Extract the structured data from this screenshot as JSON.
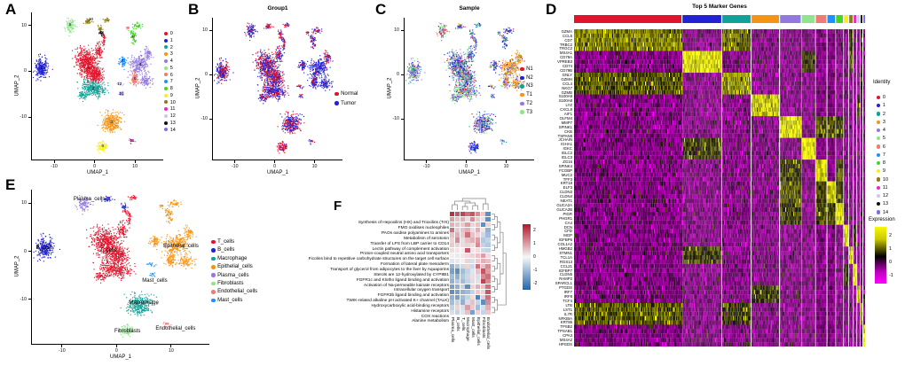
{
  "panel_labels": {
    "a": "A",
    "b": "B",
    "c": "C",
    "d": "D",
    "e": "E",
    "f": "F"
  },
  "axis": {
    "xlabel": "UMAP_1",
    "ylabel": "UMAP_2",
    "x_ticks": [
      -10,
      0,
      10
    ],
    "y_ticks": [
      10,
      0,
      -10
    ]
  },
  "palette": {
    "clusters": [
      "#E0152D",
      "#2222D3",
      "#11A297",
      "#F59314",
      "#9379DF",
      "#8FE58C",
      "#F07B72",
      "#1E90FF",
      "#45D621",
      "#F7EF1B",
      "#8A7C10",
      "#F224C4",
      "#C9C6F2",
      "#111111",
      "#7A70E8"
    ],
    "normal": "#E0152D",
    "tumor": "#2222D3",
    "samples": [
      "#E0152D",
      "#2222D3",
      "#11A297",
      "#F59314",
      "#9379DF",
      "#8FE58C"
    ],
    "celltypes": {
      "T_cells": "#E0152D",
      "B_cells": "#2222D3",
      "Macrophage": "#11A297",
      "Epithelial_cells": "#F59314",
      "Plasma_cells": "#9379DF",
      "Fibroblasts": "#8FE58C",
      "Endothelial_cells": "#F07B72",
      "Mast_cells": "#1E90FF"
    }
  },
  "chart_data": {
    "umap_blobs": [
      [
        -13.1,
        0.7,
        1.25,
        1.8,
        0,
        260,
        1,
        0.55,
        [
          6,
          10,
          16,
          2,
          42,
          24
        ],
        "B_cells"
      ],
      [
        -1.9,
        1.7,
        1.8,
        2.6,
        0.45,
        520,
        0,
        0.48,
        [
          10,
          34,
          10,
          2,
          28,
          16
        ],
        "T_cells"
      ],
      [
        0.2,
        -0.7,
        1.5,
        1.5,
        0,
        220,
        0,
        0.5,
        [
          8,
          26,
          12,
          3,
          29,
          22
        ],
        "T_cells"
      ],
      [
        1.1,
        4.3,
        0.7,
        1.5,
        0.15,
        85,
        0,
        0.45,
        [
          10,
          30,
          10,
          2,
          28,
          20
        ],
        "T_cells"
      ],
      [
        2.3,
        7.0,
        0.35,
        1.1,
        0,
        30,
        0,
        0.42,
        [
          10,
          30,
          10,
          2,
          28,
          20
        ],
        "T_cells"
      ],
      [
        -0.2,
        -3.7,
        2.2,
        1.4,
        -0.15,
        300,
        2,
        0.68,
        [
          5,
          14,
          10,
          2,
          31,
          38
        ],
        "T_cells"
      ],
      [
        -2.7,
        -5.3,
        0.85,
        0.75,
        0,
        60,
        2,
        0.62,
        [
          5,
          14,
          10,
          2,
          31,
          38
        ],
        "T_cells"
      ],
      [
        4.2,
        -11.1,
        2.0,
        1.6,
        0.2,
        300,
        3,
        0.6,
        [
          8,
          30,
          15,
          4,
          25,
          18
        ],
        "Macrophage"
      ],
      [
        11.1,
        1.3,
        1.8,
        1.6,
        0.35,
        240,
        4,
        0.92,
        [
          4,
          9,
          4,
          71,
          8,
          4
        ],
        "Epithelial_cells"
      ],
      [
        13.2,
        3.7,
        0.75,
        0.95,
        0,
        55,
        4,
        0.5,
        [
          4,
          9,
          4,
          71,
          8,
          4
        ],
        "Epithelial_cells"
      ],
      [
        12.7,
        -1.9,
        1.1,
        1.1,
        0,
        85,
        4,
        0.92,
        [
          4,
          9,
          4,
          71,
          8,
          4
        ],
        "Epithelial_cells"
      ],
      [
        -6.0,
        10.0,
        0.95,
        1.15,
        0,
        100,
        5,
        0.75,
        [
          20,
          10,
          10,
          4,
          16,
          40
        ],
        "Plasma_cells"
      ],
      [
        9.9,
        -1.6,
        0.85,
        1.3,
        0,
        90,
        6,
        0.85,
        [
          5,
          12,
          5,
          48,
          20,
          10
        ],
        "Epithelial_cells"
      ],
      [
        7.0,
        2.1,
        0.75,
        0.85,
        0,
        70,
        7,
        0.75,
        [
          5,
          38,
          9,
          8,
          30,
          10
        ],
        "Epithelial_cells"
      ],
      [
        9.6,
        7.6,
        0.6,
        1.3,
        0.2,
        60,
        8,
        0.55,
        [
          6,
          55,
          6,
          10,
          11,
          12
        ],
        "Epithelial_cells"
      ],
      [
        10.6,
        9.9,
        0.95,
        0.5,
        -0.3,
        40,
        8,
        0.3,
        [
          6,
          55,
          6,
          10,
          11,
          12
        ],
        "Epithelial_cells"
      ],
      [
        2.0,
        -16.3,
        1.0,
        0.85,
        0,
        90,
        9,
        0.2,
        [
          5,
          70,
          7,
          2,
          9,
          7
        ],
        "Fibroblasts"
      ],
      [
        -1.6,
        10.9,
        0.75,
        0.45,
        0.2,
        35,
        10,
        0.3,
        [
          10,
          20,
          28,
          4,
          12,
          26
        ],
        "B_cells"
      ],
      [
        1.4,
        9.3,
        0.5,
        0.6,
        0,
        25,
        10,
        0.32,
        [
          10,
          20,
          28,
          4,
          12,
          26
        ],
        "B_cells"
      ],
      [
        3.1,
        11.1,
        0.65,
        0.35,
        0,
        22,
        10,
        0.4,
        [
          10,
          20,
          28,
          4,
          12,
          26
        ],
        "T_cells"
      ],
      [
        9.1,
        -15.1,
        0.5,
        0.4,
        0,
        18,
        11,
        0.3,
        [
          15,
          20,
          15,
          15,
          20,
          15
        ],
        "Endothelial_cells"
      ],
      [
        6.3,
        -2.7,
        0.65,
        0.55,
        0,
        16,
        12,
        0.4,
        [
          6,
          38,
          10,
          10,
          26,
          10
        ],
        "Mast_cells"
      ],
      [
        1.7,
        8.2,
        0.45,
        0.4,
        0,
        16,
        13,
        0.5,
        [
          10,
          30,
          15,
          5,
          25,
          15
        ],
        "T_cells"
      ],
      [
        6.6,
        -4.9,
        0.45,
        0.4,
        0,
        14,
        14,
        0.4,
        [
          6,
          38,
          10,
          10,
          26,
          10
        ],
        "Mast_cells"
      ],
      [
        8.2,
        9.4,
        0.3,
        0.3,
        0,
        12,
        6,
        0.2,
        [
          10,
          20,
          20,
          20,
          15,
          15
        ],
        "Epithelial_cells"
      ]
    ],
    "umap_clusters": {
      "type": "scatter",
      "legend": [
        "0",
        "1",
        "2",
        "3",
        "4",
        "5",
        "6",
        "7",
        "8",
        "9",
        "10",
        "11",
        "12",
        "13",
        "14"
      ],
      "labels": [
        [
          "0",
          -1.3,
          0.6
        ],
        [
          "1",
          -13.1,
          0.6
        ],
        [
          "2",
          -0.3,
          -3.9
        ],
        [
          "3",
          4.2,
          -11.3
        ],
        [
          "4",
          11.3,
          1.3
        ],
        [
          "5",
          -6.1,
          9.9
        ],
        [
          "6",
          10.0,
          -1.7
        ],
        [
          "7",
          6.9,
          2.0
        ],
        [
          "8",
          9.6,
          7.3
        ],
        [
          "9",
          2.0,
          -16.5
        ],
        [
          "10",
          -0.9,
          11.2
        ],
        [
          "11",
          9.3,
          -15.3
        ],
        [
          "12",
          6.2,
          -2.9
        ],
        [
          "13",
          1.7,
          8.2
        ],
        [
          "14",
          6.7,
          -5.1
        ]
      ]
    },
    "umap_group": {
      "type": "scatter",
      "title": "Group1",
      "legend": [
        "Normal",
        "Tumor"
      ]
    },
    "umap_sample": {
      "type": "scatter",
      "title": "Sample",
      "legend": [
        "N1",
        "N2",
        "N3",
        "T1",
        "T2",
        "T3"
      ]
    },
    "umap_celltype": {
      "type": "scatter",
      "legend": [
        "T_cells",
        "B_cells",
        "Macrophage",
        "Epithelial_cells",
        "Plasma_cells",
        "Fibroblasts",
        "Endothelial_cells",
        "Mast_cells"
      ],
      "labels": [
        [
          "Plasma_cells",
          -5.0,
          10.8
        ],
        [
          "B_cells",
          -13.2,
          0.6
        ],
        [
          "T_cells",
          -1.5,
          0.0
        ],
        [
          "Epithelial_cells",
          11.8,
          1.0
        ],
        [
          "Mast_cells",
          7.0,
          -6.2
        ],
        [
          "Macrophage",
          5.0,
          -10.8
        ],
        [
          "Fibroblasts",
          2.0,
          -16.6
        ],
        [
          "Endothelial_cells",
          10.8,
          -16.2
        ]
      ]
    },
    "marker_heatmap": {
      "type": "heatmap",
      "title": "Top 5 Marker Genes",
      "identity_title": "Identity",
      "identity_items": [
        "0",
        "1",
        "2",
        "3",
        "4",
        "5",
        "6",
        "7",
        "8",
        "9",
        "10",
        "11",
        "12",
        "13",
        "14"
      ],
      "expression_title": "Expression",
      "expression_ticks": [
        2,
        1,
        0,
        -1
      ],
      "genes": [
        "GZMA",
        "CCL5",
        "CD7",
        "TRBC2",
        "TRGC2",
        "MS4A1",
        "CD79A",
        "VPREB3",
        "CD74",
        "CD79B",
        "GNLY",
        "GZMH",
        "CCL4",
        "NKG7",
        "GZMB",
        "S100A9",
        "S100A8",
        "LYZ",
        "CXCL8",
        "AIF1",
        "OLFM4",
        "MMP7",
        "SPINK1",
        "CKB",
        "TSPAN8",
        "JCHAIN",
        "IGHA1",
        "IGKC",
        "IGLC2",
        "IGLC3",
        "ZG16",
        "SPINK4",
        "FCGBP",
        "MUC2",
        "TFF3",
        "KRT18",
        "ELF3",
        "CLDN3",
        "CLDN4",
        "NEAT1",
        "GUCA2A",
        "GUCA2B",
        "PIGR",
        "PHGR1",
        "CA4",
        "DCN",
        "CFD",
        "MGP",
        "IGFBP6",
        "COL1A2",
        "HMGB2",
        "STMN1",
        "TCL1A",
        "RGS13",
        "CCL21",
        "IGFBP7",
        "CLDN5",
        "RAMP2",
        "SPARCL1",
        "PTGDS",
        "IRF7",
        "IRF8",
        "TCF4",
        "LTB",
        "LST1",
        "IL7R",
        "NFKBIA",
        "KRT86",
        "TPSB2",
        "TPSAB1",
        "CPA3",
        "MS4A2",
        "HPGDS"
      ],
      "gene_cluster": [
        0,
        0,
        0,
        0,
        0,
        1,
        1,
        1,
        1,
        1,
        2,
        2,
        2,
        2,
        2,
        3,
        3,
        3,
        3,
        3,
        4,
        4,
        4,
        4,
        4,
        5,
        5,
        5,
        5,
        5,
        6,
        6,
        6,
        6,
        6,
        7,
        7,
        7,
        7,
        7,
        8,
        8,
        8,
        8,
        8,
        9,
        9,
        9,
        9,
        9,
        10,
        10,
        10,
        10,
        11,
        11,
        11,
        11,
        11,
        12,
        12,
        12,
        12,
        13,
        13,
        13,
        13,
        13,
        14,
        14,
        14,
        14,
        14
      ],
      "group_fractions": [
        0.38,
        0.137,
        0.1,
        0.097,
        0.073,
        0.046,
        0.037,
        0.027,
        0.024,
        0.015,
        0.012,
        0.009,
        0.008,
        0.006,
        0.006
      ],
      "diag": [
        1.15,
        1.9,
        1.25,
        1.7,
        1.9,
        2.1,
        1.9,
        1.8,
        2.0,
        1.9,
        1.8,
        1.9,
        1.7,
        1.4,
        2.0
      ],
      "related": {
        "0_2": 0.9,
        "2_0": 0.75,
        "13_0": 0.8,
        "0_13": 0.6,
        "2_13": 0.5,
        "4_6": 0.55,
        "4_7": 0.6,
        "4_8": 0.5,
        "6_4": 0.5,
        "6_8": 0.7,
        "7_4": 0.7,
        "7_6": 0.6,
        "7_8": 0.6,
        "8_4": 0.45,
        "8_6": 0.6,
        "8_7": 0.5,
        "1_10": 0.7,
        "10_1": 0.5,
        "1_5": 0.45,
        "5_1": 0.5,
        "3_12": 0.4,
        "12_3": 0.4,
        "9_11": 0.4,
        "11_9": 0.45,
        "13_2": 0.55,
        "0_10": 0.4
      }
    },
    "pathway_heatmap": {
      "type": "heatmap",
      "rows": [
        "Synthesis of Hepoxilins (HX) and Trioxilins (TrX)",
        "FMO oxidises nucleophiles",
        "PAOs oxidise polyamines to amines",
        "Metabolism of serotonin",
        "Transfer of LPS from LBP carrier to CD14",
        "Lectin pathway of complement activation",
        "Proton-coupled neutral amino acid transporters",
        "Ficolins bind to repetitive carbohydrate structures on the target cell surface",
        "Formation of lateral plate mesoderm",
        "Transport of glycerol from adipocytes to the liver by Aquaporins",
        "Sterols are 12-hydroxylated by CYP8B1",
        "FGFR1c and Klotho ligand binding and activation",
        "Activation of Na-permeable kainate receptors",
        "Intracellular oxygen transport",
        "FGFR3b ligand binding and activation",
        "TWIK-related alkaline pH activated K+ channel (TALK)",
        "Hydroxycarboxylic acid-binding receptors",
        "Histamine receptors",
        "COX reactions",
        "Alanine metabolism"
      ],
      "cols": [
        "Plasma_cells",
        "B_cells",
        "T_cells",
        "Macrophage",
        "Mast_cells",
        "Epithelial_cells",
        "Fibroblasts",
        "Endothelial_cells"
      ],
      "values": [
        [
          2.2,
          1.8,
          2.0,
          1.5,
          1.8,
          1.2,
          0.5,
          -1.8
        ],
        [
          1.0,
          0.6,
          0.8,
          0.3,
          1.2,
          0.5,
          -0.3,
          -1.8
        ],
        [
          0.8,
          0.6,
          0.5,
          1.0,
          0.4,
          0.6,
          -1.8,
          0.4
        ],
        [
          1.5,
          0.5,
          0.6,
          0.8,
          0.3,
          0.8,
          0.2,
          -1.2
        ],
        [
          0.6,
          0.8,
          0.5,
          1.5,
          0.6,
          0.4,
          -0.5,
          -1.0
        ],
        [
          0.4,
          1.2,
          0.3,
          0.6,
          0.8,
          1.0,
          -0.8,
          -0.6
        ],
        [
          0.5,
          0.4,
          0.3,
          0.4,
          0.3,
          1.2,
          -0.6,
          -0.8
        ],
        [
          0.3,
          0.2,
          0.1,
          1.8,
          0.2,
          0.3,
          -0.5,
          -0.6
        ],
        [
          0.1,
          -0.2,
          0.2,
          0.3,
          0.4,
          0.6,
          1.0,
          0.3
        ],
        [
          -0.3,
          0.2,
          0.1,
          0.4,
          -0.4,
          0.5,
          0.8,
          0.6
        ],
        [
          -1.2,
          -0.8,
          -0.5,
          0.4,
          -0.5,
          1.5,
          0.6,
          1.2
        ],
        [
          -1.5,
          -1.8,
          -1.0,
          -0.6,
          -0.3,
          0.6,
          1.8,
          1.0
        ],
        [
          -1.0,
          -1.2,
          -0.8,
          -0.5,
          0.3,
          -0.4,
          1.2,
          1.5
        ],
        [
          -1.2,
          -0.8,
          -1.0,
          -0.6,
          -0.4,
          0.3,
          2.0,
          1.2
        ],
        [
          -1.5,
          -1.2,
          -0.6,
          -1.8,
          0.4,
          0.8,
          0.6,
          1.5
        ],
        [
          -1.8,
          -1.5,
          -1.2,
          -1.0,
          -0.6,
          0.5,
          0.4,
          1.8
        ],
        [
          -1.2,
          -1.5,
          -1.0,
          -0.6,
          0.3,
          -2.0,
          0.5,
          1.5
        ],
        [
          -1.0,
          -0.6,
          -1.2,
          -0.4,
          0.6,
          -0.6,
          -1.8,
          1.2
        ],
        [
          -0.6,
          0.4,
          -0.4,
          1.0,
          0.5,
          -1.0,
          -0.4,
          0.8
        ],
        [
          -0.4,
          -0.6,
          -0.3,
          0.6,
          -1.5,
          0.4,
          -0.6,
          0.5
        ]
      ],
      "colorbar_ticks": [
        2,
        1,
        0,
        -1,
        -2
      ]
    }
  }
}
